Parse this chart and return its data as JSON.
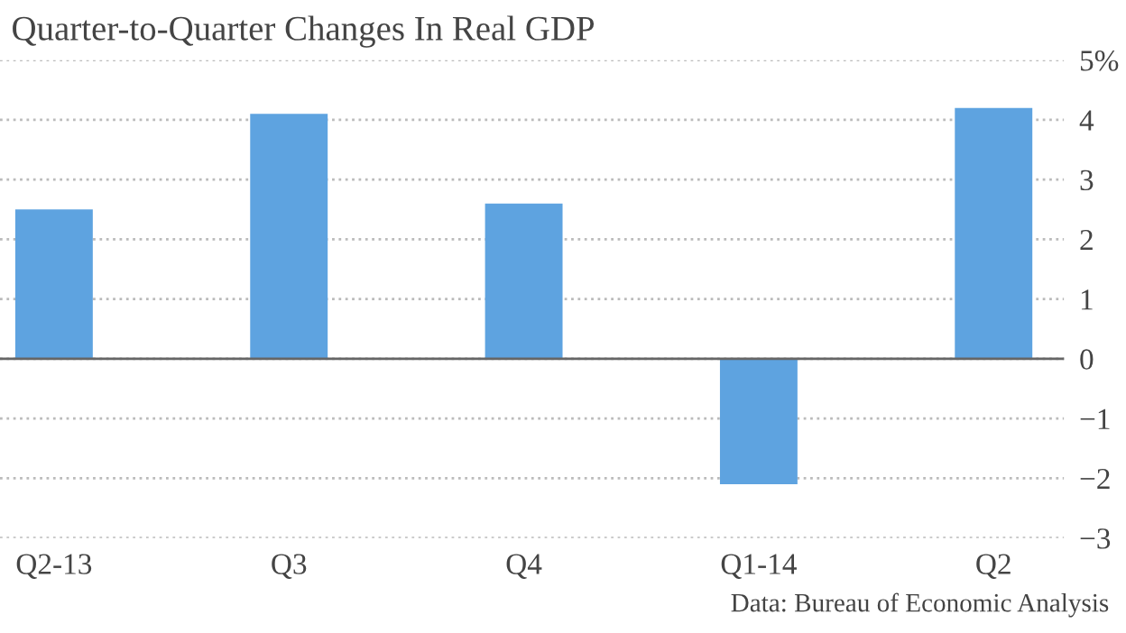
{
  "chart_data": {
    "type": "bar",
    "title": "Quarter-to-Quarter Changes In Real GDP",
    "categories": [
      "Q2-13",
      "Q3",
      "Q4",
      "Q1-14",
      "Q2"
    ],
    "values": [
      2.5,
      4.1,
      2.6,
      -2.1,
      4.2
    ],
    "color": "#5ea3e0",
    "ylim": [
      -3,
      5
    ],
    "yticks": [
      {
        "value": 5,
        "label": "5%"
      },
      4,
      3,
      2,
      1,
      0,
      -1,
      -2,
      -3
    ],
    "grid": "y",
    "line_style": "dotted",
    "ref_lines": [
      {
        "axis": "y",
        "value": 0,
        "color": "#666666",
        "line_style": "solid"
      }
    ],
    "annotations": [
      "Data: Bureau of Economic Analysis"
    ]
  }
}
